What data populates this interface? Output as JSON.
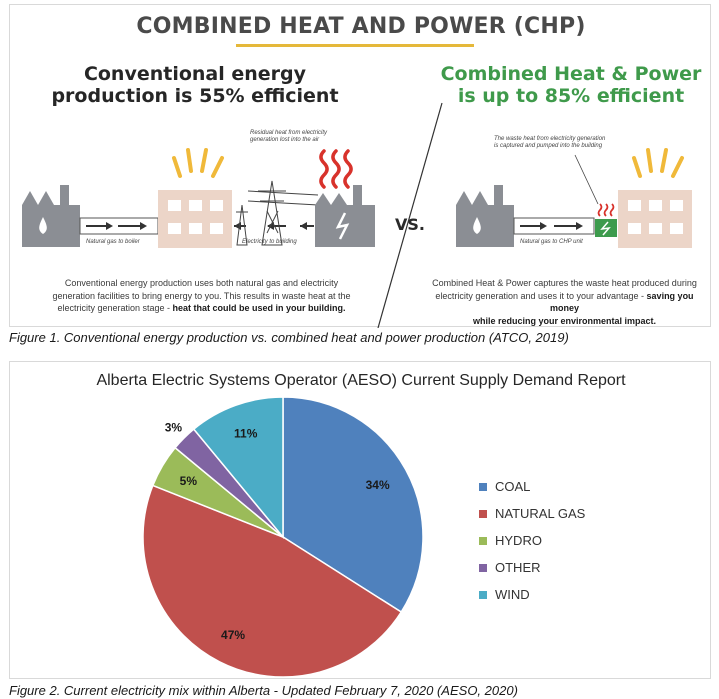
{
  "figure1": {
    "title_prefix": "COMBINED HEAT AND POWER",
    "title_suffix": " (CHP)",
    "conventional_heading_line1": "Conventional energy",
    "conventional_heading_line2": "production is 55% efficient",
    "chp_heading_line1": "Combined Heat & Power",
    "chp_heading_line2": "is up to 85% efficient",
    "vs_label": "VS.",
    "note_residual_line1": "Residual heat from electricity",
    "note_residual_line2": "generation lost into the air",
    "note_waste_line1": "The waste heat from electricity generation",
    "note_waste_line2": "is captured and pumped into the building",
    "label_gas_to_boiler": "Natural gas to boiler",
    "label_electricity_to_building": "Electricity to building",
    "label_gas_to_chp": "Natural gas to CHP unit",
    "conventional_desc_line1": "Conventional energy production uses both natural gas and electricity",
    "conventional_desc_line2": "generation facilities to bring energy to you. This results in waste heat at the",
    "conventional_desc_line3_plain": "electricity generation stage - ",
    "conventional_desc_line3_bold": "heat that could be used in your building.",
    "chp_desc_line1": "Combined Heat & Power captures the waste heat produced during",
    "chp_desc_line2_plain": "electricity generation and uses it to your advantage - ",
    "chp_desc_line2_bold": "saving you money",
    "chp_desc_line3_bold": "while reducing your environmental impact.",
    "caption": "Figure 1. Conventional energy production vs. combined heat and power production (ATCO, 2019)"
  },
  "figure2": {
    "caption": "Figure 2. Current electricity mix within Alberta - Updated February 7, 2020 (AESO, 2020)"
  },
  "chart_data": {
    "type": "pie",
    "title": "Alberta Electric Systems Operator (AESO) Current Supply Demand Report",
    "legend_position": "right",
    "slices": [
      {
        "label": "COAL",
        "value": 34,
        "display": "34%",
        "color": "#4f81bd"
      },
      {
        "label": "NATURAL GAS",
        "value": 47,
        "display": "47%",
        "color": "#c0504d"
      },
      {
        "label": "HYDRO",
        "value": 5,
        "display": "5%",
        "color": "#9bbb59"
      },
      {
        "label": "OTHER",
        "value": 3,
        "display": "3%",
        "color": "#8064a2"
      },
      {
        "label": "WIND",
        "value": 11,
        "display": "11%",
        "color": "#4bacc6"
      }
    ]
  }
}
